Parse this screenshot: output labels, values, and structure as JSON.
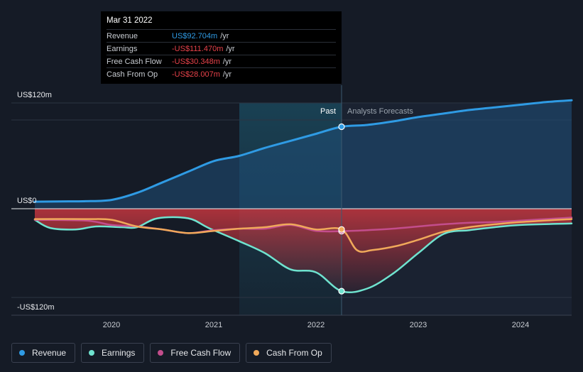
{
  "tooltip": {
    "date": "Mar 31 2022",
    "rows": [
      {
        "label": "Revenue",
        "value": "US$92.704m",
        "unit": "/yr",
        "color": "#2f9be4"
      },
      {
        "label": "Earnings",
        "value": "-US$111.470m",
        "unit": "/yr",
        "color": "#e8424a"
      },
      {
        "label": "Free Cash Flow",
        "value": "-US$30.348m",
        "unit": "/yr",
        "color": "#e8424a"
      },
      {
        "label": "Cash From Op",
        "value": "-US$28.007m",
        "unit": "/yr",
        "color": "#e8424a"
      }
    ]
  },
  "labels": {
    "past": "Past",
    "forecast": "Analysts Forecasts"
  },
  "legend": [
    {
      "label": "Revenue",
      "color": "#2f9be4"
    },
    {
      "label": "Earnings",
      "color": "#6fe3cf"
    },
    {
      "label": "Free Cash Flow",
      "color": "#c34d8c"
    },
    {
      "label": "Cash From Op",
      "color": "#f0a95a"
    }
  ],
  "chart_data": {
    "type": "line",
    "title": "",
    "xlabel": "",
    "ylabel": "",
    "ylim": [
      -120,
      120
    ],
    "y_ticks": [
      {
        "value": 120,
        "label": "US$120m"
      },
      {
        "value": 0,
        "label": "US$0"
      },
      {
        "value": -120,
        "label": "-US$120m"
      }
    ],
    "x_ticks": [
      {
        "value": 2020,
        "label": "2020"
      },
      {
        "value": 2021,
        "label": "2021"
      },
      {
        "value": 2022,
        "label": "2022"
      },
      {
        "value": 2023,
        "label": "2023"
      },
      {
        "value": 2024,
        "label": "2024"
      }
    ],
    "xlim": [
      2019.2,
      2024.5
    ],
    "past_end": 2022.25,
    "highlight_start": 2021.25,
    "series": [
      {
        "name": "Revenue",
        "color": "#2f9be4",
        "width": 3,
        "points": [
          [
            2019.25,
            8
          ],
          [
            2019.5,
            8.3
          ],
          [
            2019.75,
            8.5
          ],
          [
            2020.0,
            10
          ],
          [
            2020.25,
            18
          ],
          [
            2020.5,
            30
          ],
          [
            2020.75,
            42
          ],
          [
            2021.0,
            54
          ],
          [
            2021.25,
            60
          ],
          [
            2021.5,
            69
          ],
          [
            2021.75,
            77
          ],
          [
            2022.0,
            85
          ],
          [
            2022.25,
            93
          ],
          [
            2022.5,
            95
          ],
          [
            2022.75,
            99
          ],
          [
            2023.0,
            104
          ],
          [
            2023.25,
            108
          ],
          [
            2023.5,
            112
          ],
          [
            2023.75,
            115
          ],
          [
            2024.0,
            118
          ],
          [
            2024.25,
            121
          ],
          [
            2024.5,
            123
          ]
        ]
      },
      {
        "name": "Earnings",
        "color": "#6fe3cf",
        "width": 2.5,
        "points": [
          [
            2019.25,
            -15
          ],
          [
            2019.4,
            -26
          ],
          [
            2019.65,
            -28
          ],
          [
            2019.85,
            -24
          ],
          [
            2020.1,
            -25
          ],
          [
            2020.25,
            -25
          ],
          [
            2020.45,
            -13
          ],
          [
            2020.75,
            -13
          ],
          [
            2020.95,
            -26
          ],
          [
            2021.25,
            -44
          ],
          [
            2021.5,
            -60
          ],
          [
            2021.75,
            -82
          ],
          [
            2022.0,
            -86
          ],
          [
            2022.25,
            -111.5
          ],
          [
            2022.5,
            -108
          ],
          [
            2022.75,
            -88
          ],
          [
            2023.0,
            -60
          ],
          [
            2023.25,
            -34
          ],
          [
            2023.5,
            -29
          ],
          [
            2023.75,
            -25
          ],
          [
            2024.0,
            -22
          ],
          [
            2024.5,
            -20
          ]
        ]
      },
      {
        "name": "Free Cash Flow",
        "color": "#c34d8c",
        "width": 2.5,
        "points": [
          [
            2019.25,
            -15
          ],
          [
            2019.75,
            -16
          ],
          [
            2020.0,
            -22
          ],
          [
            2020.25,
            -24
          ],
          [
            2020.5,
            -28
          ],
          [
            2020.75,
            -33
          ],
          [
            2021.0,
            -29
          ],
          [
            2021.25,
            -27
          ],
          [
            2021.5,
            -27
          ],
          [
            2021.75,
            -22
          ],
          [
            2022.0,
            -30
          ],
          [
            2022.25,
            -30.3
          ],
          [
            2022.5,
            -29
          ],
          [
            2022.75,
            -27
          ],
          [
            2023.0,
            -24
          ],
          [
            2023.25,
            -21
          ],
          [
            2023.5,
            -19
          ],
          [
            2023.75,
            -18
          ],
          [
            2024.0,
            -16
          ],
          [
            2024.5,
            -12
          ]
        ]
      },
      {
        "name": "Cash From Op",
        "color": "#f0a95a",
        "width": 2.5,
        "points": [
          [
            2019.25,
            -14
          ],
          [
            2019.75,
            -14
          ],
          [
            2020.0,
            -15
          ],
          [
            2020.25,
            -24
          ],
          [
            2020.5,
            -28
          ],
          [
            2020.75,
            -33
          ],
          [
            2021.0,
            -30
          ],
          [
            2021.25,
            -27
          ],
          [
            2021.5,
            -25
          ],
          [
            2021.75,
            -21
          ],
          [
            2022.0,
            -28
          ],
          [
            2022.25,
            -28
          ],
          [
            2022.4,
            -56
          ],
          [
            2022.55,
            -56
          ],
          [
            2022.8,
            -50
          ],
          [
            2023.0,
            -42
          ],
          [
            2023.25,
            -31
          ],
          [
            2023.5,
            -25
          ],
          [
            2023.75,
            -21
          ],
          [
            2024.0,
            -18
          ],
          [
            2024.5,
            -14
          ]
        ]
      }
    ]
  }
}
